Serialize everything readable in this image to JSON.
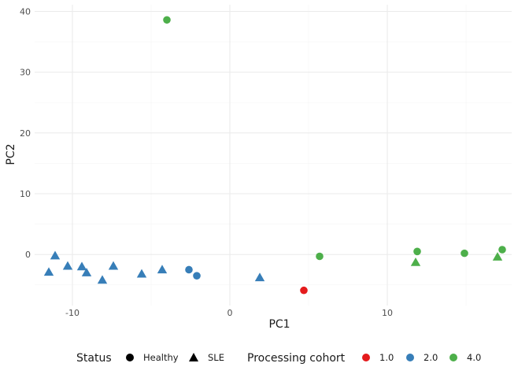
{
  "chart_data": {
    "type": "scatter",
    "title": "",
    "xlabel": "PC1",
    "ylabel": "PC2",
    "xlim": [
      -12.4,
      17.9
    ],
    "ylim": [
      -8.4,
      41.1
    ],
    "x_ticks": [
      -10,
      0,
      10
    ],
    "x_tick_labels": [
      "-10",
      "0",
      "10"
    ],
    "y_ticks": [
      0,
      10,
      20,
      30,
      40
    ],
    "y_tick_labels": [
      "0",
      "10",
      "20",
      "30",
      "40"
    ],
    "grid": true,
    "legend_position": "bottom",
    "legends": [
      {
        "title": "Status",
        "items": [
          {
            "label": "Healthy",
            "shape": "circle"
          },
          {
            "label": "SLE",
            "shape": "triangle"
          }
        ]
      },
      {
        "title": "Processing cohort",
        "items": [
          {
            "label": "1.0",
            "color": "#e41a1c"
          },
          {
            "label": "2.0",
            "color": "#377eb8"
          },
          {
            "label": "4.0",
            "color": "#4daf4a"
          }
        ]
      }
    ],
    "colors": {
      "1.0": "#e41a1c",
      "2.0": "#377eb8",
      "4.0": "#4daf4a"
    },
    "points": [
      {
        "x": -4.0,
        "y": 38.6,
        "status": "Healthy",
        "cohort": "4.0"
      },
      {
        "x": -11.5,
        "y": -2.9,
        "status": "SLE",
        "cohort": "2.0"
      },
      {
        "x": -11.1,
        "y": -0.2,
        "status": "SLE",
        "cohort": "2.0"
      },
      {
        "x": -10.3,
        "y": -1.9,
        "status": "SLE",
        "cohort": "2.0"
      },
      {
        "x": -9.4,
        "y": -2.0,
        "status": "SLE",
        "cohort": "2.0"
      },
      {
        "x": -9.1,
        "y": -3.0,
        "status": "SLE",
        "cohort": "2.0"
      },
      {
        "x": -8.1,
        "y": -4.2,
        "status": "SLE",
        "cohort": "2.0"
      },
      {
        "x": -7.4,
        "y": -1.9,
        "status": "SLE",
        "cohort": "2.0"
      },
      {
        "x": -5.6,
        "y": -3.2,
        "status": "SLE",
        "cohort": "2.0"
      },
      {
        "x": -4.3,
        "y": -2.5,
        "status": "SLE",
        "cohort": "2.0"
      },
      {
        "x": -2.6,
        "y": -2.5,
        "status": "Healthy",
        "cohort": "2.0"
      },
      {
        "x": -2.1,
        "y": -3.5,
        "status": "Healthy",
        "cohort": "2.0"
      },
      {
        "x": 1.9,
        "y": -3.8,
        "status": "SLE",
        "cohort": "2.0"
      },
      {
        "x": 4.7,
        "y": -5.9,
        "status": "Healthy",
        "cohort": "1.0"
      },
      {
        "x": 5.7,
        "y": -0.3,
        "status": "Healthy",
        "cohort": "4.0"
      },
      {
        "x": 11.8,
        "y": -1.3,
        "status": "SLE",
        "cohort": "4.0"
      },
      {
        "x": 11.9,
        "y": 0.5,
        "status": "Healthy",
        "cohort": "4.0"
      },
      {
        "x": 14.9,
        "y": 0.2,
        "status": "Healthy",
        "cohort": "4.0"
      },
      {
        "x": 17.0,
        "y": -0.4,
        "status": "SLE",
        "cohort": "4.0"
      },
      {
        "x": 17.3,
        "y": 0.8,
        "status": "Healthy",
        "cohort": "4.0"
      }
    ]
  }
}
